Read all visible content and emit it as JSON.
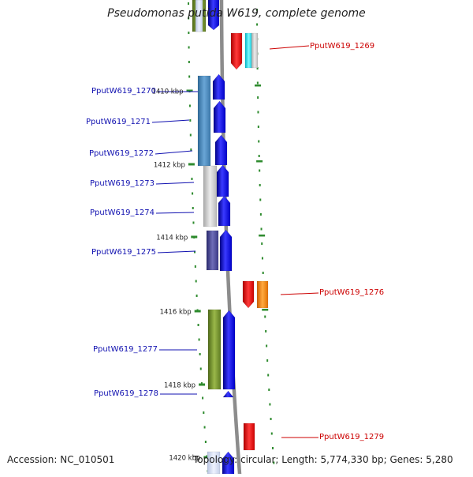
{
  "title": "Pseudomonas putida W619, complete genome",
  "footer": {
    "accession": "Accession: NC_010501",
    "summary": "Topology: circular; Length: 5,774,330 bp; Genes: 5,280"
  },
  "colors": {
    "backbone": "#8c8c8c",
    "tick": "#2e8b2e",
    "inner_label": "#1010b0",
    "outer_label": "#cc0000",
    "strand_blue": "#0000ee"
  },
  "position_markers": [
    {
      "label": "1410 kbp"
    },
    {
      "label": "1412 kbp"
    },
    {
      "label": "1414 kbp"
    },
    {
      "label": "1416 kbp"
    },
    {
      "label": "1418 kbp"
    },
    {
      "label": "1420 kbp"
    }
  ],
  "inner_genes": [
    {
      "label": "PputW619_1270"
    },
    {
      "label": "PputW619_1271"
    },
    {
      "label": "PputW619_1272"
    },
    {
      "label": "PputW619_1273"
    },
    {
      "label": "PputW619_1274"
    },
    {
      "label": "PputW619_1275"
    },
    {
      "label": "PputW619_1277"
    },
    {
      "label": "PputW619_1278"
    }
  ],
  "outer_genes": [
    {
      "label": "PputW619_1269"
    },
    {
      "label": "PputW619_1276"
    },
    {
      "label": "PputW619_1279"
    }
  ]
}
